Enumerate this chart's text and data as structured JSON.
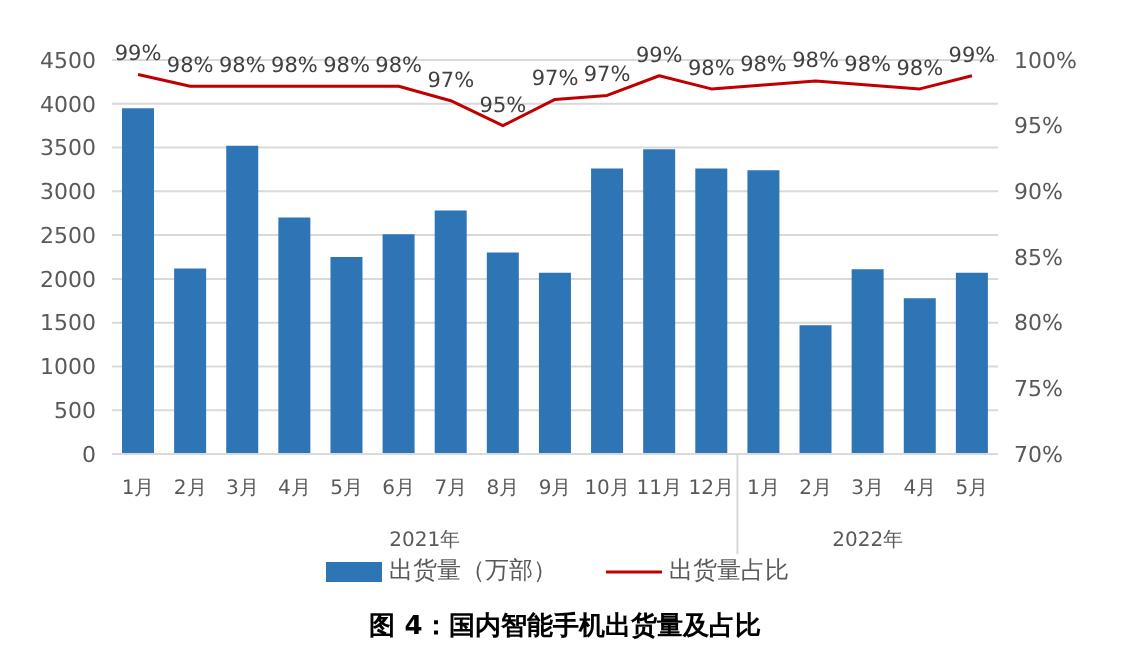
{
  "chart_data": {
    "type": "bar",
    "title": "图 4：国内智能手机出货量及占比",
    "categories": [
      "1月",
      "2月",
      "3月",
      "4月",
      "5月",
      "6月",
      "7月",
      "8月",
      "9月",
      "10月",
      "11月",
      "12月",
      "1月",
      "2月",
      "3月",
      "4月",
      "5月"
    ],
    "annotations": [
      "2021年",
      "2022年"
    ],
    "series": [
      {
        "name": "出货量（万部）",
        "color": "#2e75b6",
        "values": [
          3950,
          2120,
          3520,
          2700,
          2250,
          2510,
          2780,
          2300,
          2070,
          3260,
          3480,
          3260,
          3240,
          1470,
          2110,
          1780,
          2070
        ]
      },
      {
        "name": "出货量占比",
        "type": "line",
        "axis": "y2",
        "color": "#c00000",
        "marker": "none",
        "values": [
          98.9,
          98.0,
          98.0,
          98.0,
          98.0,
          98.0,
          96.9,
          95.0,
          97.0,
          97.3,
          98.8,
          97.8,
          98.1,
          98.4,
          98.1,
          97.8,
          98.8
        ],
        "value_labels": [
          "99%",
          "98%",
          "98%",
          "98%",
          "98%",
          "98%",
          "97%",
          "95%",
          "97%",
          "97%",
          "99%",
          "98%",
          "98%",
          "98%",
          "98%",
          "98%",
          "99%"
        ]
      }
    ],
    "ylim": [
      0,
      4500
    ],
    "yticks": [
      0,
      500,
      1000,
      1500,
      2000,
      2500,
      3000,
      3500,
      4000,
      4500
    ],
    "y2lim": [
      70,
      100
    ],
    "y2ticks": [
      {
        "value": 70,
        "label": "70%"
      },
      {
        "value": 75,
        "label": "75%"
      },
      {
        "value": 80,
        "label": "80%"
      },
      {
        "value": 85,
        "label": "85%"
      },
      {
        "value": 90,
        "label": "90%"
      },
      {
        "value": 95,
        "label": "95%"
      },
      {
        "value": 100,
        "label": "100%"
      }
    ],
    "grid": "y",
    "legend": "bottom"
  }
}
